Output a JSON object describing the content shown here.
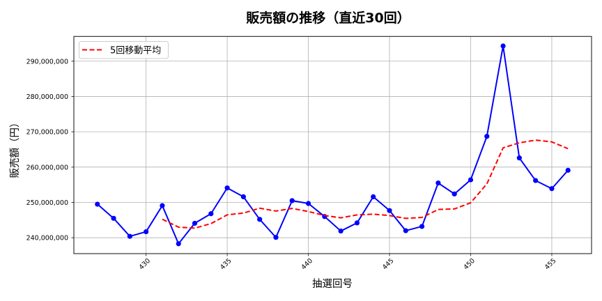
{
  "title": "販売額の推移（直近30回）",
  "legend": {
    "items": [
      {
        "label": "5回移動平均",
        "color": "#ff0000",
        "style": "dashed"
      }
    ]
  },
  "chart_data": {
    "type": "line",
    "title": "販売額の推移（直近30回）",
    "xlabel": "抽選回号",
    "ylabel": "販売額（円）",
    "xlim": [
      425.55,
      457.45
    ],
    "ylim": [
      235500000,
      297000000
    ],
    "grid": true,
    "legend_position": "upper left",
    "xticks": [
      430,
      435,
      440,
      445,
      450,
      455
    ],
    "xtick_labels": [
      "430",
      "435",
      "440",
      "445",
      "450",
      "455"
    ],
    "xtick_rotation": 45,
    "yticks": [
      240000000,
      250000000,
      260000000,
      270000000,
      280000000,
      290000000
    ],
    "ytick_labels": [
      "240,000,000",
      "250,000,000",
      "260,000,000",
      "270,000,000",
      "280,000,000",
      "290,000,000"
    ],
    "series": [
      {
        "name": "販売額",
        "color": "#0000ff",
        "style": "solid",
        "marker": "circle",
        "in_legend": false,
        "x": [
          427,
          428,
          429,
          430,
          431,
          432,
          433,
          434,
          435,
          436,
          437,
          438,
          439,
          440,
          441,
          442,
          443,
          444,
          445,
          446,
          447,
          448,
          449,
          450,
          451,
          452,
          453,
          454,
          455,
          456
        ],
        "values": [
          249500000,
          245500000,
          240400000,
          241700000,
          249100000,
          238300000,
          244100000,
          246800000,
          254100000,
          251600000,
          245200000,
          240100000,
          250500000,
          249700000,
          246000000,
          241900000,
          244200000,
          251600000,
          247700000,
          242000000,
          243200000,
          255500000,
          252400000,
          256400000,
          268700000,
          294300000,
          262600000,
          256200000,
          253900000,
          259100000
        ]
      },
      {
        "name": "5回移動平均",
        "color": "#ff0000",
        "style": "dashed",
        "marker": "none",
        "in_legend": true,
        "x": [
          431,
          432,
          433,
          434,
          435,
          436,
          437,
          438,
          439,
          440,
          441,
          442,
          443,
          444,
          445,
          446,
          447,
          448,
          449,
          450,
          451,
          452,
          453,
          454,
          455,
          456
        ],
        "values": [
          245240000,
          243000000,
          242720000,
          244000000,
          246480000,
          246980000,
          248360000,
          247560000,
          248300000,
          247420000,
          246300000,
          245640000,
          246460000,
          246680000,
          246280000,
          245480000,
          245740000,
          248000000,
          248160000,
          249900000,
          255240000,
          265460000,
          266880000,
          267640000,
          267140000,
          265220000
        ]
      }
    ]
  }
}
